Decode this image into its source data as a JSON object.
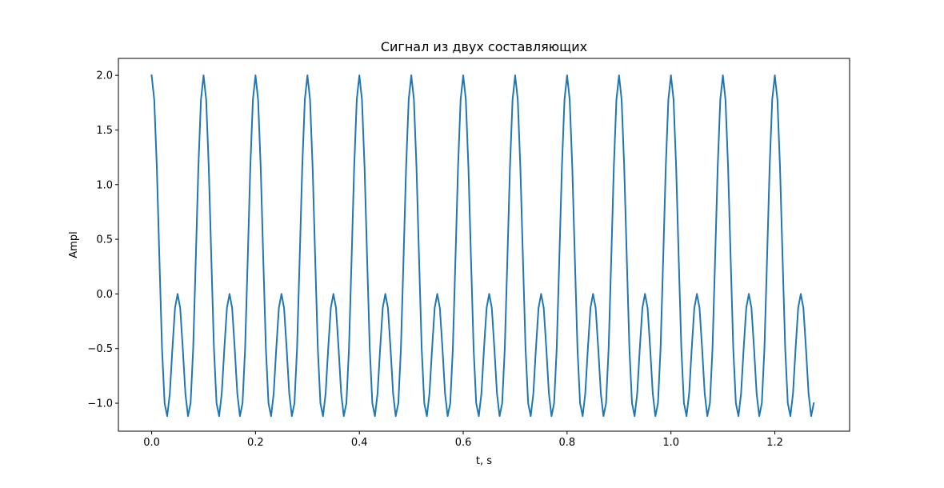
{
  "chart_data": {
    "type": "line",
    "title": "Сигнал из двух составляющих",
    "xlabel": "t, s",
    "ylabel": "Ampl",
    "xlim": [
      -0.064,
      1.344
    ],
    "ylim": [
      -1.256,
      2.155
    ],
    "xticks": [
      0.0,
      0.2,
      0.4,
      0.6,
      0.8,
      1.0,
      1.2
    ],
    "xtick_labels": [
      "0.0",
      "0.2",
      "0.4",
      "0.6",
      "0.8",
      "1.0",
      "1.2"
    ],
    "yticks": [
      -1.0,
      -0.5,
      0.0,
      0.5,
      1.0,
      1.5,
      2.0
    ],
    "ytick_labels": [
      "−1.0",
      "−0.5",
      "0.0",
      "0.5",
      "1.0",
      "1.5",
      "2.0"
    ],
    "grid": false,
    "series": [
      {
        "color": "#1f77b4",
        "x": [
          0.0,
          0.005,
          0.01,
          0.015,
          0.02,
          0.025,
          0.03,
          0.035,
          0.04,
          0.045,
          0.05,
          0.055,
          0.06,
          0.065,
          0.07,
          0.075,
          0.08,
          0.085,
          0.09,
          0.095,
          0.1,
          0.105,
          0.11,
          0.115,
          0.12,
          0.125,
          0.13,
          0.135,
          0.14,
          0.145,
          0.15,
          0.155,
          0.16,
          0.165,
          0.17,
          0.175,
          0.18,
          0.185,
          0.19,
          0.195,
          0.2,
          0.205,
          0.21,
          0.215,
          0.22,
          0.225,
          0.23,
          0.235,
          0.24,
          0.245,
          0.25,
          0.255,
          0.26,
          0.265,
          0.27,
          0.275,
          0.28,
          0.285,
          0.29,
          0.295,
          0.3,
          0.305,
          0.31,
          0.315,
          0.32,
          0.325,
          0.33,
          0.335,
          0.34,
          0.345,
          0.35,
          0.355,
          0.36,
          0.365,
          0.37,
          0.375,
          0.38,
          0.385,
          0.39,
          0.395,
          0.4,
          0.405,
          0.41,
          0.415,
          0.42,
          0.425,
          0.43,
          0.435,
          0.44,
          0.445,
          0.45,
          0.455,
          0.46,
          0.465,
          0.47,
          0.475,
          0.48,
          0.485,
          0.49,
          0.495,
          0.5,
          0.505,
          0.51,
          0.515,
          0.52,
          0.525,
          0.53,
          0.535,
          0.54,
          0.545,
          0.55,
          0.555,
          0.56,
          0.565,
          0.57,
          0.575,
          0.58,
          0.585,
          0.59,
          0.595,
          0.6,
          0.605,
          0.61,
          0.615,
          0.62,
          0.625,
          0.63,
          0.635,
          0.64,
          0.645,
          0.65,
          0.655,
          0.66,
          0.665,
          0.67,
          0.675,
          0.68,
          0.685,
          0.69,
          0.695,
          0.7,
          0.705,
          0.71,
          0.715,
          0.72,
          0.725,
          0.73,
          0.735,
          0.74,
          0.745,
          0.75,
          0.755,
          0.76,
          0.765,
          0.77,
          0.775,
          0.78,
          0.785,
          0.79,
          0.795,
          0.8,
          0.805,
          0.81,
          0.815,
          0.82,
          0.825,
          0.83,
          0.835,
          0.84,
          0.845,
          0.85,
          0.855,
          0.86,
          0.865,
          0.87,
          0.875,
          0.88,
          0.885,
          0.89,
          0.895,
          0.9,
          0.905,
          0.91,
          0.915,
          0.92,
          0.925,
          0.93,
          0.935,
          0.94,
          0.945,
          0.95,
          0.955,
          0.96,
          0.965,
          0.97,
          0.975,
          0.98,
          0.985,
          0.99,
          0.995,
          1.0,
          1.005,
          1.01,
          1.015,
          1.02,
          1.025,
          1.03,
          1.035,
          1.04,
          1.045,
          1.05,
          1.055,
          1.06,
          1.065,
          1.07,
          1.075,
          1.08,
          1.085,
          1.09,
          1.095,
          1.1,
          1.105,
          1.11,
          1.115,
          1.12,
          1.125,
          1.13,
          1.135,
          1.14,
          1.145,
          1.15,
          1.155,
          1.16,
          1.165,
          1.17,
          1.175,
          1.18,
          1.185,
          1.19,
          1.195,
          1.2,
          1.205,
          1.21,
          1.215,
          1.22,
          1.225,
          1.23,
          1.235,
          1.24,
          1.245,
          1.25,
          1.255,
          1.26,
          1.265,
          1.27,
          1.275
        ],
        "y": [
          2.0,
          1.778,
          1.159,
          0.315,
          -0.5,
          -1.0,
          -1.118,
          -0.912,
          -0.5,
          -0.128,
          0.0,
          -0.128,
          -0.5,
          -0.912,
          -1.118,
          -1.0,
          -0.5,
          0.315,
          1.159,
          1.778,
          2.0,
          1.778,
          1.159,
          0.315,
          -0.5,
          -1.0,
          -1.118,
          -0.912,
          -0.5,
          -0.128,
          0.0,
          -0.128,
          -0.5,
          -0.912,
          -1.118,
          -1.0,
          -0.5,
          0.315,
          1.159,
          1.778,
          2.0,
          1.778,
          1.159,
          0.315,
          -0.5,
          -1.0,
          -1.118,
          -0.912,
          -0.5,
          -0.128,
          0.0,
          -0.128,
          -0.5,
          -0.912,
          -1.118,
          -1.0,
          -0.5,
          0.315,
          1.159,
          1.778,
          2.0,
          1.778,
          1.159,
          0.315,
          -0.5,
          -1.0,
          -1.118,
          -0.912,
          -0.5,
          -0.128,
          0.0,
          -0.128,
          -0.5,
          -0.912,
          -1.118,
          -1.0,
          -0.5,
          0.315,
          1.159,
          1.778,
          2.0,
          1.778,
          1.159,
          0.315,
          -0.5,
          -1.0,
          -1.118,
          -0.912,
          -0.5,
          -0.128,
          0.0,
          -0.128,
          -0.5,
          -0.912,
          -1.118,
          -1.0,
          -0.5,
          0.315,
          1.159,
          1.778,
          2.0,
          1.778,
          1.159,
          0.315,
          -0.5,
          -1.0,
          -1.118,
          -0.912,
          -0.5,
          -0.128,
          0.0,
          -0.128,
          -0.5,
          -0.912,
          -1.118,
          -1.0,
          -0.5,
          0.315,
          1.159,
          1.778,
          2.0,
          1.778,
          1.159,
          0.315,
          -0.5,
          -1.0,
          -1.118,
          -0.912,
          -0.5,
          -0.128,
          0.0,
          -0.128,
          -0.5,
          -0.912,
          -1.118,
          -1.0,
          -0.5,
          0.315,
          1.159,
          1.778,
          2.0,
          1.778,
          1.159,
          0.315,
          -0.5,
          -1.0,
          -1.118,
          -0.912,
          -0.5,
          -0.128,
          0.0,
          -0.128,
          -0.5,
          -0.912,
          -1.118,
          -1.0,
          -0.5,
          0.315,
          1.159,
          1.778,
          2.0,
          1.778,
          1.159,
          0.315,
          -0.5,
          -1.0,
          -1.118,
          -0.912,
          -0.5,
          -0.128,
          0.0,
          -0.128,
          -0.5,
          -0.912,
          -1.118,
          -1.0,
          -0.5,
          0.315,
          1.159,
          1.778,
          2.0,
          1.778,
          1.159,
          0.315,
          -0.5,
          -1.0,
          -1.118,
          -0.912,
          -0.5,
          -0.128,
          0.0,
          -0.128,
          -0.5,
          -0.912,
          -1.118,
          -1.0,
          -0.5,
          0.315,
          1.159,
          1.778,
          2.0,
          1.778,
          1.159,
          0.315,
          -0.5,
          -1.0,
          -1.118,
          -0.912,
          -0.5,
          -0.128,
          0.0,
          -0.128,
          -0.5,
          -0.912,
          -1.118,
          -1.0,
          -0.5,
          0.315,
          1.159,
          1.778,
          2.0,
          1.778,
          1.159,
          0.315,
          -0.5,
          -1.0,
          -1.118,
          -0.912,
          -0.5,
          -0.128,
          0.0,
          -0.128,
          -0.5,
          -0.912,
          -1.118,
          -1.0,
          -0.5,
          0.315,
          1.159,
          1.778,
          2.0,
          1.778,
          1.159,
          0.315,
          -0.5,
          -1.0,
          -1.118,
          -0.912,
          -0.5,
          -0.128,
          0.0,
          -0.128,
          -0.5,
          -0.912,
          -1.118,
          -1.0
        ]
      }
    ]
  }
}
